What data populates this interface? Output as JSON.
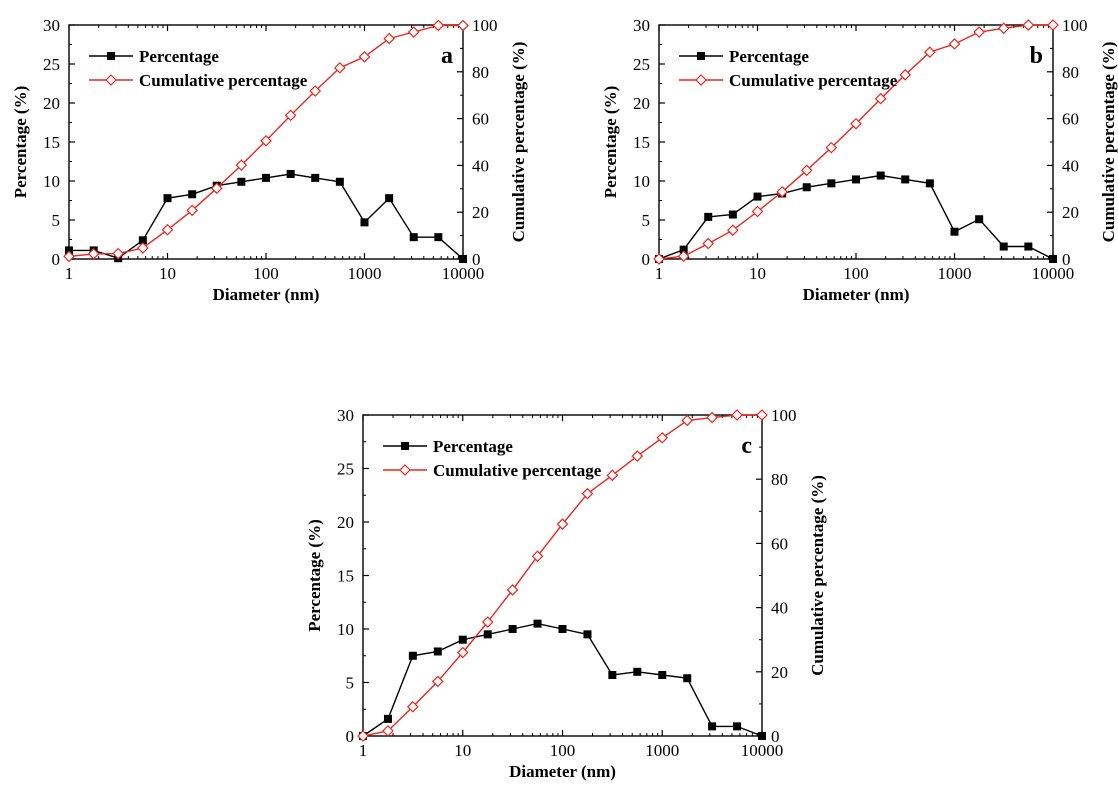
{
  "chart_data": [
    {
      "type": "line",
      "panel": "a",
      "xlabel": "Diameter (nm)",
      "ylabel": "Percentage (%)",
      "y2label": "Cumulative percentage (%)",
      "xscale": "log",
      "xlim": [
        1,
        10000
      ],
      "ylim": [
        0,
        30
      ],
      "y2lim": [
        0,
        100
      ],
      "xticks": [
        "1",
        "10",
        "100",
        "1000",
        "10000"
      ],
      "yticks": [
        "0",
        "5",
        "10",
        "15",
        "20",
        "25",
        "30"
      ],
      "y2ticks": [
        "0",
        "20",
        "40",
        "60",
        "80",
        "100"
      ],
      "legend_position": "top-left",
      "grid": false,
      "x": [
        1,
        1.78,
        3.16,
        5.62,
        10,
        17.8,
        31.6,
        56.2,
        100,
        178,
        316,
        562,
        1000,
        1780,
        3160,
        5620,
        10000
      ],
      "series": [
        {
          "name": "Percentage",
          "axis": "left",
          "color": "#000000",
          "marker": "filled-square",
          "values": [
            1.1,
            1.1,
            0.1,
            2.4,
            7.8,
            8.3,
            9.4,
            9.9,
            10.4,
            10.9,
            10.4,
            9.9,
            4.7,
            7.8,
            2.8,
            2.8,
            0.0
          ]
        },
        {
          "name": "Cumulative percentage",
          "axis": "right",
          "color": "#e8261f",
          "marker": "open-diamond",
          "values": [
            1.1,
            2.2,
            2.3,
            4.7,
            12.5,
            20.8,
            30.2,
            40.1,
            50.5,
            61.4,
            71.8,
            81.7,
            86.4,
            94.2,
            97.0,
            99.8,
            99.8
          ]
        }
      ]
    },
    {
      "type": "line",
      "panel": "b",
      "xlabel": "Diameter (nm)",
      "ylabel": "Percentage (%)",
      "y2label": "Cumulative percentage (%)",
      "xscale": "log",
      "xlim": [
        1,
        10000
      ],
      "ylim": [
        0,
        30
      ],
      "y2lim": [
        0,
        100
      ],
      "xticks": [
        "1",
        "10",
        "100",
        "1000",
        "10000"
      ],
      "yticks": [
        "0",
        "5",
        "10",
        "15",
        "20",
        "25",
        "30"
      ],
      "y2ticks": [
        "0",
        "20",
        "40",
        "60",
        "80",
        "100"
      ],
      "legend_position": "top-left",
      "grid": false,
      "x": [
        1,
        1.78,
        3.16,
        5.62,
        10,
        17.8,
        31.6,
        56.2,
        100,
        178,
        316,
        562,
        1000,
        1780,
        3160,
        5620,
        10000
      ],
      "series": [
        {
          "name": "Percentage",
          "axis": "left",
          "color": "#000000",
          "marker": "filled-square",
          "values": [
            0.0,
            1.2,
            5.4,
            5.7,
            8.0,
            8.4,
            9.2,
            9.7,
            10.2,
            10.7,
            10.2,
            9.7,
            3.5,
            5.1,
            1.6,
            1.6,
            0.0
          ]
        },
        {
          "name": "Cumulative percentage",
          "axis": "right",
          "color": "#e8261f",
          "marker": "open-diamond",
          "values": [
            0.0,
            1.2,
            6.6,
            12.3,
            20.3,
            28.7,
            37.9,
            47.6,
            57.8,
            68.5,
            78.7,
            88.4,
            91.9,
            97.0,
            98.6,
            100.0,
            100.0
          ]
        }
      ]
    },
    {
      "type": "line",
      "panel": "c",
      "xlabel": "Diameter (nm)",
      "ylabel": "Percentage (%)",
      "y2label": "Cumulative percentage (%)",
      "xscale": "log",
      "xlim": [
        1,
        10000
      ],
      "ylim": [
        0,
        30
      ],
      "y2lim": [
        0,
        100
      ],
      "xticks": [
        "1",
        "10",
        "100",
        "1000",
        "10000"
      ],
      "yticks": [
        "0",
        "5",
        "10",
        "15",
        "20",
        "25",
        "30"
      ],
      "y2ticks": [
        "0",
        "20",
        "40",
        "60",
        "80",
        "100"
      ],
      "legend_position": "top-left",
      "grid": false,
      "x": [
        1,
        1.78,
        3.16,
        5.62,
        10,
        17.8,
        31.6,
        56.2,
        100,
        178,
        316,
        562,
        1000,
        1780,
        3160,
        5620,
        10000
      ],
      "series": [
        {
          "name": "Percentage",
          "axis": "left",
          "color": "#000000",
          "marker": "filled-square",
          "values": [
            0.0,
            1.6,
            7.5,
            7.9,
            9.0,
            9.5,
            10.0,
            10.5,
            10.0,
            9.5,
            5.7,
            6.0,
            5.7,
            5.4,
            0.9,
            0.9,
            0.0
          ]
        },
        {
          "name": "Cumulative percentage",
          "axis": "right",
          "color": "#e8261f",
          "marker": "open-diamond",
          "values": [
            0.0,
            1.6,
            9.1,
            17.0,
            26.0,
            35.5,
            45.5,
            56.0,
            66.0,
            75.5,
            81.2,
            87.2,
            92.9,
            98.3,
            99.2,
            100.0,
            100.0
          ]
        }
      ]
    }
  ]
}
